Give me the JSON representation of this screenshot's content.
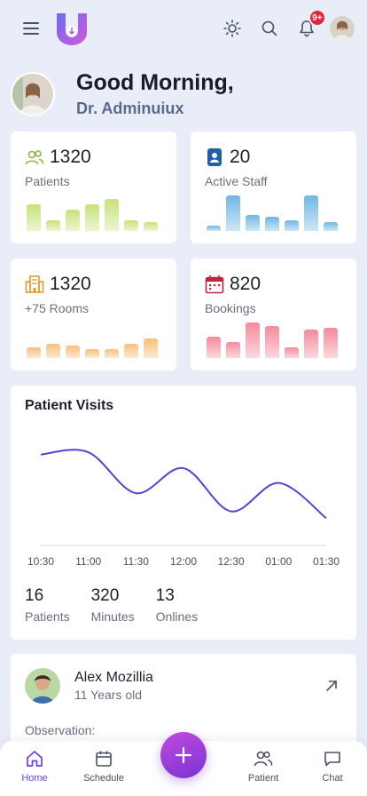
{
  "header": {
    "notifications_badge": "9+",
    "icons": [
      "menu-icon",
      "app-logo",
      "sun-icon",
      "search-icon",
      "bell-icon",
      "avatar"
    ]
  },
  "greeting": {
    "title": "Good Morning,",
    "name": "Dr. Adminuiux"
  },
  "stats": [
    {
      "value": "1320",
      "label": "Patients",
      "icon": "users-icon",
      "color": "#c6e27a",
      "bars": [
        0.75,
        0.3,
        0.6,
        0.75,
        0.9,
        0.3,
        0.25
      ]
    },
    {
      "value": "20",
      "label": "Active Staff",
      "icon": "id-badge-icon",
      "color": "#6fb6e6",
      "bars": [
        0.15,
        1.0,
        0.45,
        0.4,
        0.3,
        1.0,
        0.25
      ]
    },
    {
      "value": "1320",
      "label": "+75 Rooms",
      "icon": "building-icon",
      "color": "#f7c07a",
      "bars": [
        0.3,
        0.4,
        0.35,
        0.25,
        0.25,
        0.4,
        0.55
      ]
    },
    {
      "value": "820",
      "label": "Bookings",
      "icon": "calendar-icon",
      "color": "#f58a9a",
      "bars": [
        0.6,
        0.45,
        1.0,
        0.9,
        0.3,
        0.8,
        0.85
      ]
    }
  ],
  "visits": {
    "title": "Patient Visits",
    "summary": [
      {
        "value": "16",
        "label": "Patients"
      },
      {
        "value": "320",
        "label": "Minutes"
      },
      {
        "value": "13",
        "label": "Onlines"
      }
    ]
  },
  "chart_data": {
    "type": "line",
    "x": [
      "10:30",
      "11:00",
      "11:30",
      "12:00",
      "12:30",
      "01:00",
      "01:30"
    ],
    "y": [
      0.8,
      0.82,
      0.46,
      0.68,
      0.3,
      0.55,
      0.24
    ],
    "color": "#5b3fd6",
    "grid": false
  },
  "patient": {
    "name": "Alex Mozillia",
    "age": "11 Years old",
    "observation_label": "Observation:"
  },
  "nav": {
    "items": [
      {
        "label": "Home",
        "icon": "home-icon",
        "active": true
      },
      {
        "label": "Schedule",
        "icon": "calendar-icon"
      },
      {
        "label": "Patient",
        "icon": "users-icon"
      },
      {
        "label": "Chat",
        "icon": "chat-icon"
      }
    ],
    "fab_icon": "plus-icon"
  }
}
